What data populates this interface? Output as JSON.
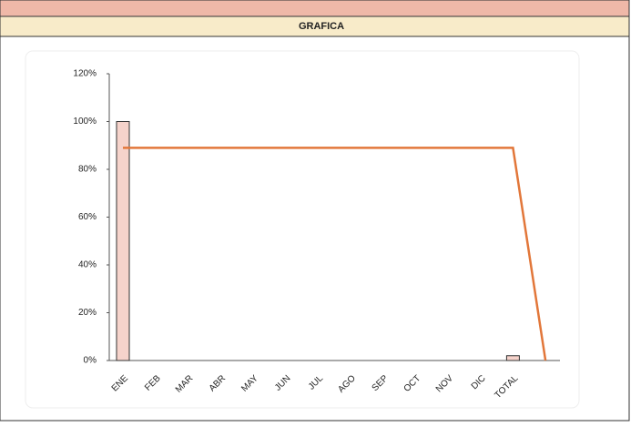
{
  "chart_data": {
    "type": "bar_line",
    "title": "GRAFICA",
    "categories": [
      "ENE",
      "FEB",
      "MAR",
      "ABR",
      "MAY",
      "JUN",
      "JUL",
      "AGO",
      "SEP",
      "OCT",
      "NOV",
      "DIC",
      "TOTAL",
      null
    ],
    "series": [
      {
        "type": "bar",
        "color": "#f6d3cb",
        "values": [
          100,
          null,
          null,
          null,
          null,
          null,
          null,
          null,
          null,
          null,
          null,
          null,
          2,
          null
        ]
      },
      {
        "type": "line",
        "color": "#e2773a",
        "values": [
          89,
          89,
          89,
          89,
          89,
          89,
          89,
          89,
          89,
          89,
          89,
          89,
          89,
          0
        ]
      }
    ],
    "ylim": [
      0,
      120
    ],
    "yticks": [
      {
        "value": 0,
        "label": "0%"
      },
      {
        "value": 20,
        "label": "20%"
      },
      {
        "value": 40,
        "label": "40%"
      },
      {
        "value": 60,
        "label": "60%"
      },
      {
        "value": 80,
        "label": "80%"
      },
      {
        "value": 100,
        "label": "100%"
      },
      {
        "value": 120,
        "label": "120%"
      }
    ],
    "grid": false
  }
}
